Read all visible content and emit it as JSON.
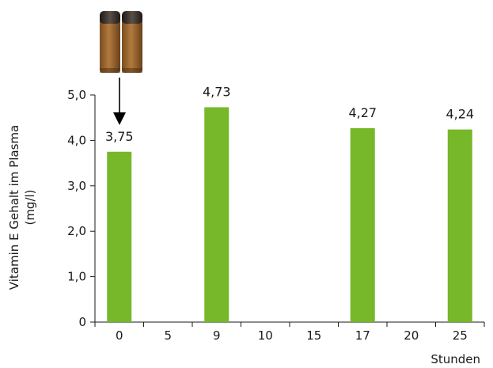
{
  "chart_data": {
    "type": "bar",
    "categories": [
      "0",
      "5",
      "9",
      "10",
      "15",
      "17",
      "20",
      "25"
    ],
    "values": [
      3.75,
      null,
      4.73,
      null,
      null,
      4.27,
      null,
      4.24
    ],
    "data_labels": [
      "3,75",
      "",
      "4,73",
      "",
      "",
      "4,27",
      "",
      "4,24"
    ],
    "ylim": [
      0,
      5
    ],
    "yticks": [
      0,
      1,
      2,
      3,
      4,
      5
    ],
    "ytick_labels": [
      "0",
      "1,0",
      "2,0",
      "3,0",
      "4,0",
      "5,0"
    ],
    "xlabel": "Stunden",
    "ylabel_line1": "Vitamin E Gehalt im Plasma",
    "ylabel_line2": "(mg/l)",
    "bar_color": "#76b82a",
    "grid": false,
    "annotation": {
      "type": "capsule-image-with-arrow",
      "target_category": "0",
      "icon": "capsules-icon"
    }
  }
}
